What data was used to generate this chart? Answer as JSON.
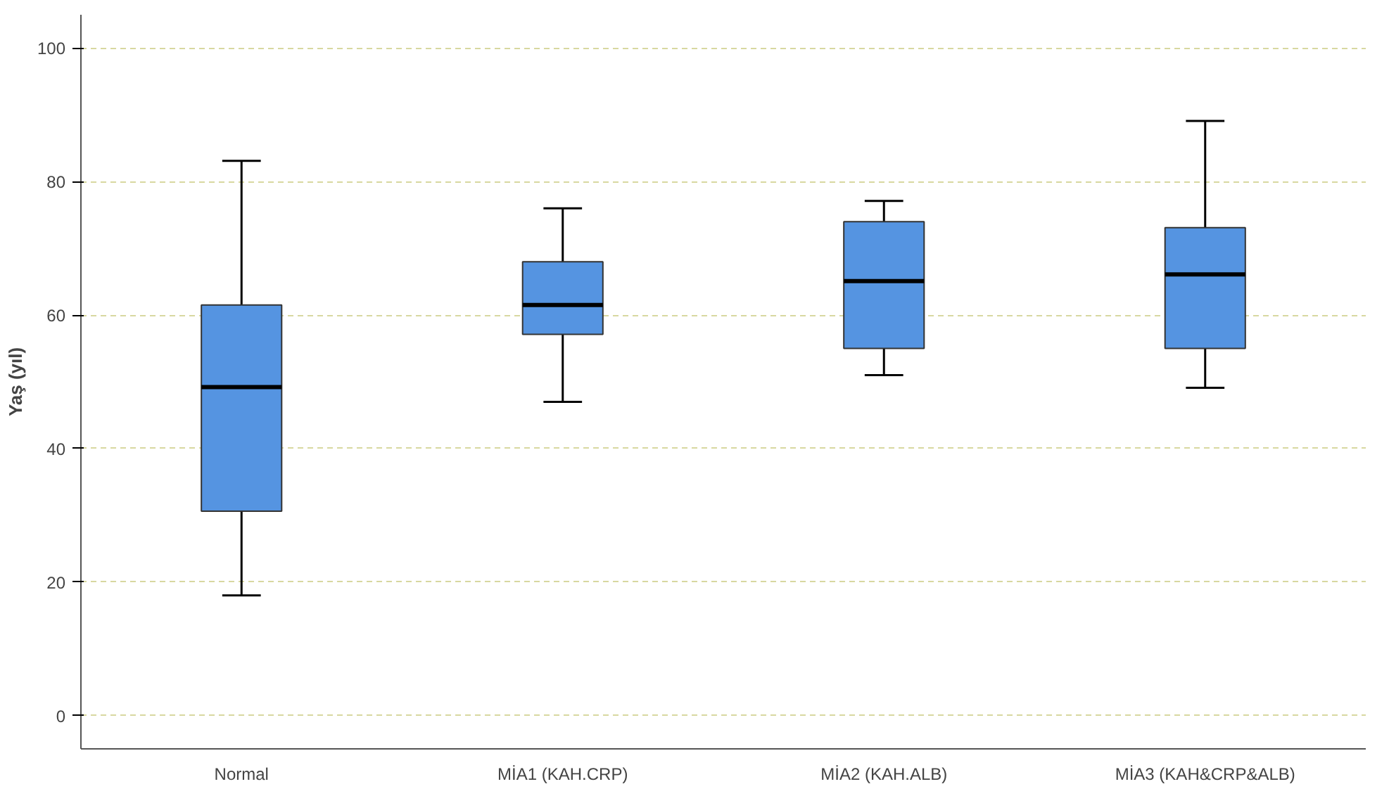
{
  "chart_data": {
    "type": "box",
    "ylabel": "Yaş (yıl)",
    "categories": [
      "Normal",
      "MİA1 (KAH.CRP)",
      "MİA2 (KAH.ALB)",
      "MİA3 (KAH&CRP&ALB)"
    ],
    "boxes": [
      {
        "low": 18,
        "q1": 30.6,
        "median": 49.2,
        "q3": 61.5,
        "high": 83.1
      },
      {
        "low": 47,
        "q1": 57.1,
        "median": 61.5,
        "q3": 68,
        "high": 76
      },
      {
        "low": 51,
        "q1": 55,
        "median": 65.1,
        "q3": 74,
        "high": 77.1
      },
      {
        "low": 49.1,
        "q1": 55,
        "median": 66.1,
        "q3": 73.1,
        "high": 89.1
      }
    ],
    "color": "#5594e1",
    "ylim": [
      -5,
      105
    ],
    "yticks": [
      0,
      20,
      40,
      60,
      80,
      100
    ],
    "grid": "y",
    "line_style": "dashed"
  }
}
